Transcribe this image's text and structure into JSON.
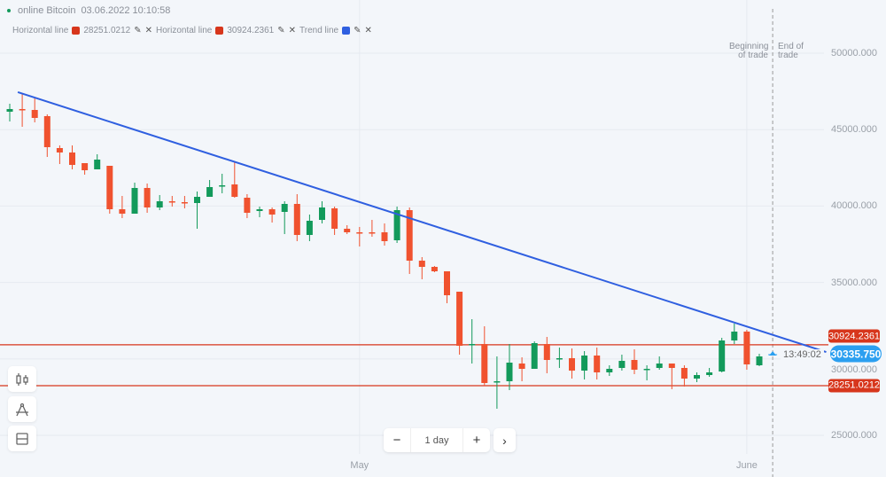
{
  "header": {
    "asset": "online Bitcoin",
    "datetime": "03.06.2022 10:10:58",
    "status_color": "#139a5b"
  },
  "legend": [
    {
      "label": "Horizontal line",
      "value": "28251.0212",
      "color": "#d7361c"
    },
    {
      "label": "Horizontal line",
      "value": "30924.2361",
      "color": "#d7361c"
    },
    {
      "label": "Trend line",
      "value": "",
      "color": "#2f5fe0"
    }
  ],
  "trade": {
    "beginning_label": "Beginning of trade",
    "end_label": "End of trade",
    "timer": "13:49:02"
  },
  "controls": {
    "timeframe": "1 day",
    "minus": "−",
    "plus": "+",
    "next": "›"
  },
  "colors": {
    "up": "#139a5b",
    "down": "#f0522f",
    "trend": "#2f5fe0",
    "hline": "#d7361c",
    "current_price": "#2b9ff0"
  },
  "chart_data": {
    "type": "candlestick",
    "title": "",
    "x_tick_labels": [
      {
        "date": "2022-05-01",
        "label": "May"
      },
      {
        "date": "2022-06-01",
        "label": "June"
      }
    ],
    "y_ticks": [
      "50000.000",
      "45000.000",
      "40000.000",
      "35000.000",
      "30000.000",
      "25000.000"
    ],
    "ylim": [
      23000,
      52000
    ],
    "grid": true,
    "first_date": "2022-04-03",
    "ohlc": [
      [
        46172,
        46694,
        45534,
        46346
      ],
      [
        46346,
        47390,
        45186,
        46288
      ],
      [
        46288,
        47100,
        45476,
        45766
      ],
      [
        45882,
        45998,
        43214,
        43852
      ],
      [
        43794,
        43968,
        42750,
        43504
      ],
      [
        43504,
        43968,
        42402,
        42692
      ],
      [
        42808,
        42808,
        42054,
        42344
      ],
      [
        42402,
        43388,
        42402,
        43040
      ],
      [
        42634,
        42634,
        39502,
        39792
      ],
      [
        39792,
        40662,
        39212,
        39502
      ],
      [
        39502,
        41532,
        39502,
        41184
      ],
      [
        41184,
        41474,
        39560,
        39908
      ],
      [
        39908,
        40720,
        39734,
        40314
      ],
      [
        40314,
        40662,
        39966,
        40256
      ],
      [
        40256,
        40662,
        39850,
        40198
      ],
      [
        40198,
        40952,
        38516,
        40604
      ],
      [
        40604,
        41706,
        40604,
        41242
      ],
      [
        41300,
        42112,
        40836,
        41358
      ],
      [
        41416,
        42866,
        40546,
        40604
      ],
      [
        40546,
        40778,
        39212,
        39560
      ],
      [
        39676,
        39966,
        39270,
        39792
      ],
      [
        39792,
        39908,
        38922,
        39444
      ],
      [
        39618,
        40314,
        38168,
        40140
      ],
      [
        40140,
        40778,
        37704,
        38110
      ],
      [
        38110,
        39444,
        37704,
        39038
      ],
      [
        39096,
        40314,
        38864,
        39908
      ],
      [
        39850,
        39966,
        38110,
        38516
      ],
      [
        38516,
        38748,
        38168,
        38284
      ],
      [
        38284,
        38632,
        37356,
        38226
      ],
      [
        38284,
        39096,
        37994,
        38226
      ],
      [
        38284,
        38864,
        37414,
        37704
      ],
      [
        37762,
        39966,
        37588,
        39734
      ],
      [
        39734,
        39908,
        35558,
        36428
      ],
      [
        36428,
        36660,
        35210,
        36022
      ],
      [
        36022,
        36080,
        35674,
        35732
      ],
      [
        35732,
        35732,
        33644,
        34166
      ],
      [
        34398,
        34398,
        30280,
        30860
      ],
      [
        30918,
        32600,
        29700,
        30976
      ],
      [
        30976,
        32136,
        28250,
        28424
      ],
      [
        28482,
        30164,
        26742,
        28540
      ],
      [
        28540,
        30976,
        27960,
        29758
      ],
      [
        29700,
        30106,
        28540,
        29352
      ],
      [
        29352,
        31150,
        29352,
        31034
      ],
      [
        30976,
        31440,
        29062,
        29932
      ],
      [
        29990,
        30744,
        29410,
        30048
      ],
      [
        30048,
        30686,
        28714,
        29236
      ],
      [
        29236,
        30512,
        28656,
        30222
      ],
      [
        30222,
        30744,
        28656,
        29120
      ],
      [
        29120,
        29584,
        28888,
        29352
      ],
      [
        29410,
        30280,
        29236,
        29874
      ],
      [
        29932,
        30628,
        29004,
        29294
      ],
      [
        29294,
        29584,
        28598,
        29352
      ],
      [
        29410,
        30164,
        29294,
        29700
      ],
      [
        29700,
        29700,
        28018,
        29410
      ],
      [
        29410,
        29584,
        28192,
        28714
      ],
      [
        28714,
        29120,
        28482,
        28946
      ],
      [
        28946,
        29410,
        28830,
        29120
      ],
      [
        29178,
        31382,
        29120,
        31208
      ],
      [
        31208,
        32310,
        30976,
        31788
      ],
      [
        31788,
        31904,
        29294,
        29642
      ],
      [
        29584,
        30338,
        29526,
        30164
      ]
    ],
    "horizontal_lines": [
      {
        "price": 30924.2361,
        "label": "30924.2361"
      },
      {
        "price": 28251.0212,
        "label": "28251.0212"
      }
    ],
    "trend_line": {
      "start": {
        "date": "2022-04-04",
        "price": 47450
      },
      "end": {
        "date": "2022-06-07",
        "price": 30450
      }
    },
    "current_price": {
      "value": 30335.75,
      "label": "30335.750"
    },
    "trade_marker_date": "2022-06-03"
  }
}
